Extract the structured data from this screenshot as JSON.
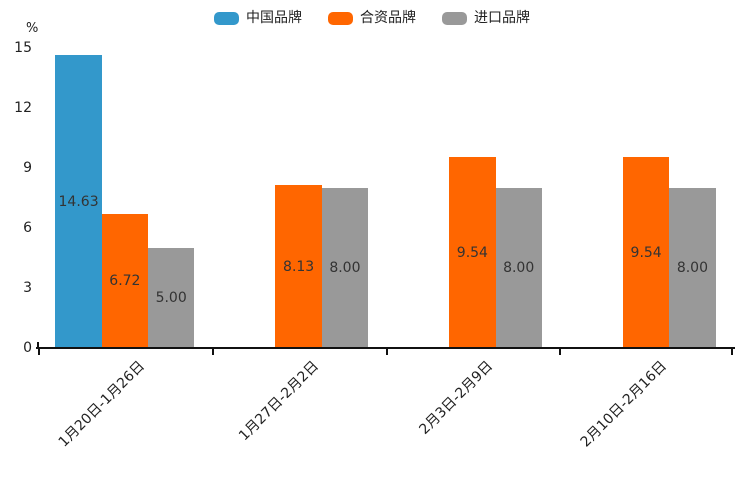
{
  "chart_data": {
    "type": "bar",
    "title": "",
    "xlabel": "",
    "ylabel": "%",
    "ylim": [
      0,
      15
    ],
    "yticks": [
      0,
      3,
      6,
      9,
      12,
      15
    ],
    "grid": false,
    "legend_position": "top",
    "categories": [
      "1月20日-1月26日",
      "1月27日-2月2日",
      "2月3日-2月9日",
      "2月10日-2月16日"
    ],
    "series": [
      {
        "name": "中国品牌",
        "color": "#3398CB",
        "values": [
          14.63,
          null,
          null,
          null
        ]
      },
      {
        "name": "合资品牌",
        "color": "#FF6600",
        "values": [
          6.72,
          8.13,
          9.54,
          9.54
        ]
      },
      {
        "name": "进口品牌",
        "color": "#999999",
        "values": [
          5.0,
          8.0,
          8.0,
          8.0
        ]
      }
    ],
    "value_label_decimals": 2,
    "colors": {
      "axis": "#111111",
      "tick_text": "#222222",
      "value_label_text": "#333333"
    }
  }
}
